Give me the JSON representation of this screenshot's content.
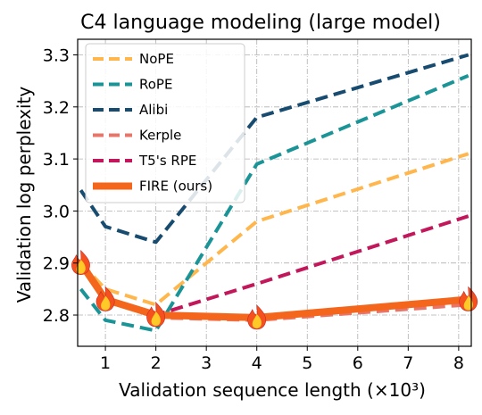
{
  "chart_data": {
    "type": "line",
    "title": "C4 language modeling (large model)",
    "xlabel": "Validation sequence length (×10³)",
    "ylabel": "Validation log perplexity",
    "xlim": [
      0.45,
      8.25
    ],
    "ylim": [
      2.74,
      3.33
    ],
    "xticks": [
      1,
      2,
      3,
      4,
      5,
      6,
      7,
      8
    ],
    "yticks": [
      2.8,
      2.9,
      3.0,
      3.1,
      3.2,
      3.3
    ],
    "ytick_labels": [
      "2.8",
      "2.9",
      "3.0",
      "3.1",
      "3.2",
      "3.3"
    ],
    "grid": true,
    "legend_position": "top-left",
    "series": [
      {
        "name": "NoPE",
        "color": "#ffb74d",
        "style": "dashed",
        "x": [
          0.512,
          1,
          2,
          4,
          8.192
        ],
        "y": [
          2.9,
          2.85,
          2.82,
          2.98,
          3.11
        ]
      },
      {
        "name": "RoPE",
        "color": "#1a9496",
        "style": "dashed",
        "x": [
          0.512,
          1,
          2,
          4,
          8.192
        ],
        "y": [
          2.85,
          2.79,
          2.77,
          3.09,
          3.26
        ]
      },
      {
        "name": "Alibi",
        "color": "#174c70",
        "style": "dashed",
        "x": [
          0.512,
          1,
          2,
          4,
          8.192
        ],
        "y": [
          3.04,
          2.97,
          2.94,
          3.18,
          3.3
        ]
      },
      {
        "name": "Kerple",
        "color": "#e8756a",
        "style": "dashed",
        "x": [
          0.512,
          1,
          2,
          4,
          8.192
        ],
        "y": [
          2.9,
          2.83,
          2.795,
          2.79,
          2.82
        ]
      },
      {
        "name": "T5's RPE",
        "color": "#c2185b",
        "style": "dashed",
        "x": [
          0.512,
          1,
          2,
          4,
          8.192
        ],
        "y": [
          2.9,
          2.83,
          2.8,
          2.86,
          2.99
        ]
      },
      {
        "name": "FIRE (ours)",
        "color": "#f4661b",
        "style": "solid",
        "marker": "fire-icon",
        "x": [
          0.512,
          1,
          2,
          4,
          8.192
        ],
        "y": [
          2.9,
          2.83,
          2.8,
          2.795,
          2.83
        ]
      }
    ]
  }
}
